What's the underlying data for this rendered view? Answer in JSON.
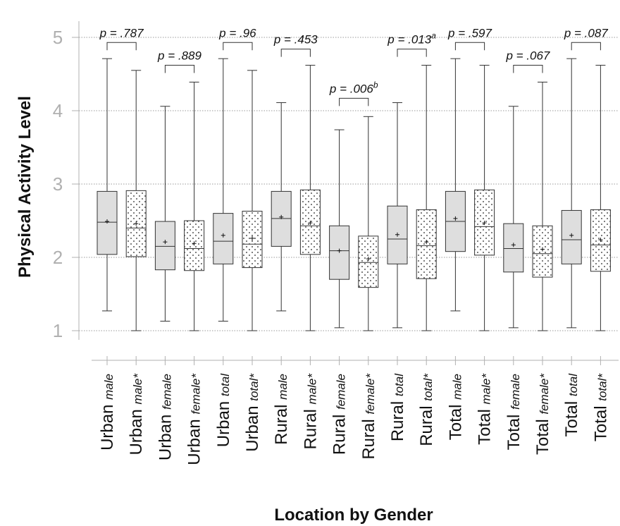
{
  "chart_data": {
    "type": "boxplot",
    "xlabel": "Location by Gender",
    "ylabel": "Physical Activity Level",
    "ylim": [
      1,
      5
    ],
    "yticks": [
      "1",
      "2",
      "3",
      "4",
      "5"
    ],
    "grid": "horizontal dotted",
    "categories": [
      {
        "main": "Urban",
        "sub": "male",
        "star": "",
        "fill": "solid"
      },
      {
        "main": "Urban",
        "sub": "male",
        "star": "*",
        "fill": "dotted"
      },
      {
        "main": "Urban",
        "sub": "female",
        "star": "",
        "fill": "solid"
      },
      {
        "main": "Urban",
        "sub": "female",
        "star": "*",
        "fill": "dotted"
      },
      {
        "main": "Urban",
        "sub": "total",
        "star": "",
        "fill": "solid"
      },
      {
        "main": "Urban",
        "sub": "total",
        "star": "*",
        "fill": "dotted"
      },
      {
        "main": "Rural",
        "sub": "male",
        "star": "",
        "fill": "solid"
      },
      {
        "main": "Rural",
        "sub": "male",
        "star": "*",
        "fill": "dotted"
      },
      {
        "main": "Rural",
        "sub": "female",
        "star": "",
        "fill": "solid"
      },
      {
        "main": "Rural",
        "sub": "female",
        "star": "*",
        "fill": "dotted"
      },
      {
        "main": "Rural",
        "sub": "total",
        "star": "",
        "fill": "solid"
      },
      {
        "main": "Rural",
        "sub": "total",
        "star": "*",
        "fill": "dotted"
      },
      {
        "main": "Total",
        "sub": "male",
        "star": "",
        "fill": "solid"
      },
      {
        "main": "Total",
        "sub": "male",
        "star": "*",
        "fill": "dotted"
      },
      {
        "main": "Total",
        "sub": "female",
        "star": "",
        "fill": "solid"
      },
      {
        "main": "Total",
        "sub": "female",
        "star": "*",
        "fill": "dotted"
      },
      {
        "main": "Total",
        "sub": "total",
        "star": "",
        "fill": "solid"
      },
      {
        "main": "Total",
        "sub": "total",
        "star": "*",
        "fill": "dotted"
      }
    ],
    "boxes": [
      {
        "min": 1.27,
        "q1": 2.04,
        "median": 2.48,
        "q3": 2.9,
        "max": 4.71,
        "mean": 2.49
      },
      {
        "min": 1.0,
        "q1": 2.01,
        "median": 2.4,
        "q3": 2.91,
        "max": 4.55,
        "mean": 2.46
      },
      {
        "min": 1.13,
        "q1": 1.83,
        "median": 2.15,
        "q3": 2.49,
        "max": 4.06,
        "mean": 2.21
      },
      {
        "min": 1.0,
        "q1": 1.82,
        "median": 2.12,
        "q3": 2.5,
        "max": 4.39,
        "mean": 2.19
      },
      {
        "min": 1.13,
        "q1": 1.91,
        "median": 2.22,
        "q3": 2.6,
        "max": 4.71,
        "mean": 2.3
      },
      {
        "min": 1.0,
        "q1": 1.86,
        "median": 2.18,
        "q3": 2.63,
        "max": 4.55,
        "mean": 2.26
      },
      {
        "min": 1.27,
        "q1": 2.15,
        "median": 2.53,
        "q3": 2.9,
        "max": 4.11,
        "mean": 2.55
      },
      {
        "min": 1.0,
        "q1": 2.04,
        "median": 2.43,
        "q3": 2.92,
        "max": 4.62,
        "mean": 2.47
      },
      {
        "min": 1.04,
        "q1": 1.7,
        "median": 2.09,
        "q3": 2.43,
        "max": 3.74,
        "mean": 2.09
      },
      {
        "min": 1.0,
        "q1": 1.59,
        "median": 1.93,
        "q3": 2.29,
        "max": 3.92,
        "mean": 1.98
      },
      {
        "min": 1.04,
        "q1": 1.91,
        "median": 2.25,
        "q3": 2.7,
        "max": 4.11,
        "mean": 2.31
      },
      {
        "min": 1.0,
        "q1": 1.71,
        "median": 2.16,
        "q3": 2.65,
        "max": 4.62,
        "mean": 2.21
      },
      {
        "min": 1.27,
        "q1": 2.08,
        "median": 2.49,
        "q3": 2.9,
        "max": 4.71,
        "mean": 2.53
      },
      {
        "min": 1.0,
        "q1": 2.03,
        "median": 2.42,
        "q3": 2.92,
        "max": 4.62,
        "mean": 2.47
      },
      {
        "min": 1.04,
        "q1": 1.8,
        "median": 2.12,
        "q3": 2.46,
        "max": 4.06,
        "mean": 2.17
      },
      {
        "min": 1.0,
        "q1": 1.73,
        "median": 2.05,
        "q3": 2.43,
        "max": 4.39,
        "mean": 2.11
      },
      {
        "min": 1.04,
        "q1": 1.91,
        "median": 2.24,
        "q3": 2.64,
        "max": 4.71,
        "mean": 2.3
      },
      {
        "min": 1.0,
        "q1": 1.81,
        "median": 2.17,
        "q3": 2.65,
        "max": 4.62,
        "mean": 2.24
      }
    ],
    "comparisons": [
      {
        "pair": [
          0,
          1
        ],
        "label": "p = .787",
        "sup": "",
        "level": 4.93
      },
      {
        "pair": [
          2,
          3
        ],
        "label": "p = .889",
        "sup": "",
        "level": 4.62
      },
      {
        "pair": [
          4,
          5
        ],
        "label": "p = .96",
        "sup": "",
        "level": 4.93
      },
      {
        "pair": [
          6,
          7
        ],
        "label": "p = .453",
        "sup": "",
        "level": 4.84
      },
      {
        "pair": [
          8,
          9
        ],
        "label": "p = .006",
        "sup": "b",
        "level": 4.17
      },
      {
        "pair": [
          10,
          11
        ],
        "label": "p = .013",
        "sup": "a",
        "level": 4.84
      },
      {
        "pair": [
          12,
          13
        ],
        "label": "p = .597",
        "sup": "",
        "level": 4.93
      },
      {
        "pair": [
          14,
          15
        ],
        "label": "p = .067",
        "sup": "",
        "level": 4.62
      },
      {
        "pair": [
          16,
          17
        ],
        "label": "p = .087",
        "sup": "",
        "level": 4.93
      }
    ],
    "colors": {
      "solid_fill": "#dedede",
      "grid": "#999999",
      "tick_text": "#b0b0b0",
      "axis": "#b0b0b0"
    }
  }
}
